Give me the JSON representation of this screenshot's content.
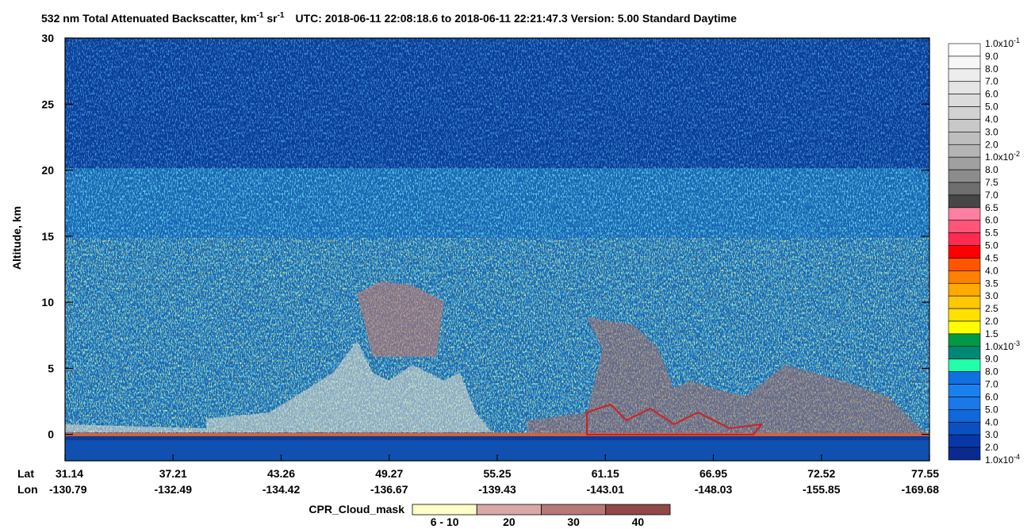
{
  "chart_data": {
    "type": "heatmap",
    "title": {
      "text": "532 nm Total Attenuated Backscatter, km",
      "sup1": "-1",
      "text2": " sr",
      "sup2": "-1",
      "info": "UTC:  2018-06-11 22:08:18.6  to  2018-06-11 22:21:47.3    Version: 5.00  Standard  Daytime"
    },
    "y_label": "Altitude, km",
    "ylim": [
      -2,
      30
    ],
    "yticks": [
      0,
      5,
      10,
      15,
      20,
      25,
      30
    ],
    "x_row_labels": [
      "Lat",
      "Lon"
    ],
    "lat": [
      "31.14",
      "37.21",
      "43.26",
      "49.27",
      "55.25",
      "61.15",
      "66.95",
      "72.52",
      "77.55"
    ],
    "lon": [
      "-130.79",
      "-132.49",
      "-134.42",
      "-136.67",
      "-139.43",
      "-143.01",
      "-148.03",
      "-155.85",
      "-169.68"
    ],
    "colorbar": {
      "labels": [
        {
          "base": "1.0x10",
          "exp": "-1"
        },
        "9.0",
        "8.0",
        "7.0",
        "6.0",
        "5.0",
        "4.0",
        "3.0",
        "2.0",
        {
          "base": "1.0x10",
          "exp": "-2"
        },
        "8.0",
        "7.5",
        "7.0",
        "6.5",
        "6.0",
        "5.5",
        "5.0",
        "4.5",
        "4.0",
        "3.5",
        "3.0",
        "2.5",
        "2.0",
        "1.5",
        {
          "base": "1.0x10",
          "exp": "-3"
        },
        "9.0",
        "8.0",
        "7.0",
        "6.0",
        "5.0",
        "4.0",
        "3.0",
        "2.0",
        {
          "base": "1.0x10",
          "exp": "-4"
        }
      ],
      "colors": [
        "#ffffff",
        "#f6f6f6",
        "#ededed",
        "#e4e4e4",
        "#dbdbdb",
        "#d2d2d2",
        "#c8c8c8",
        "#bebebe",
        "#b4b4b4",
        "#a0a0a0",
        "#8c8c8c",
        "#6e6e6e",
        "#464646",
        "#ff7fa0",
        "#ff5577",
        "#ff2a50",
        "#ff0000",
        "#ff5500",
        "#ff7f00",
        "#ffaa00",
        "#ffc800",
        "#ffe000",
        "#ffff00",
        "#009944",
        "#008877",
        "#22ffaa",
        "#1070e0",
        "#1a80f0",
        "#1a78e8",
        "#1068d8",
        "#0a50c0",
        "#0838a8",
        "#0a2a90"
      ]
    },
    "cpr_legend": {
      "title": "CPR_Cloud_mask",
      "labels": [
        "6 - 10",
        "20",
        "30",
        "40"
      ],
      "colors": [
        "#ffffc8",
        "#d8a8a8",
        "#b87878",
        "#904848"
      ]
    }
  }
}
